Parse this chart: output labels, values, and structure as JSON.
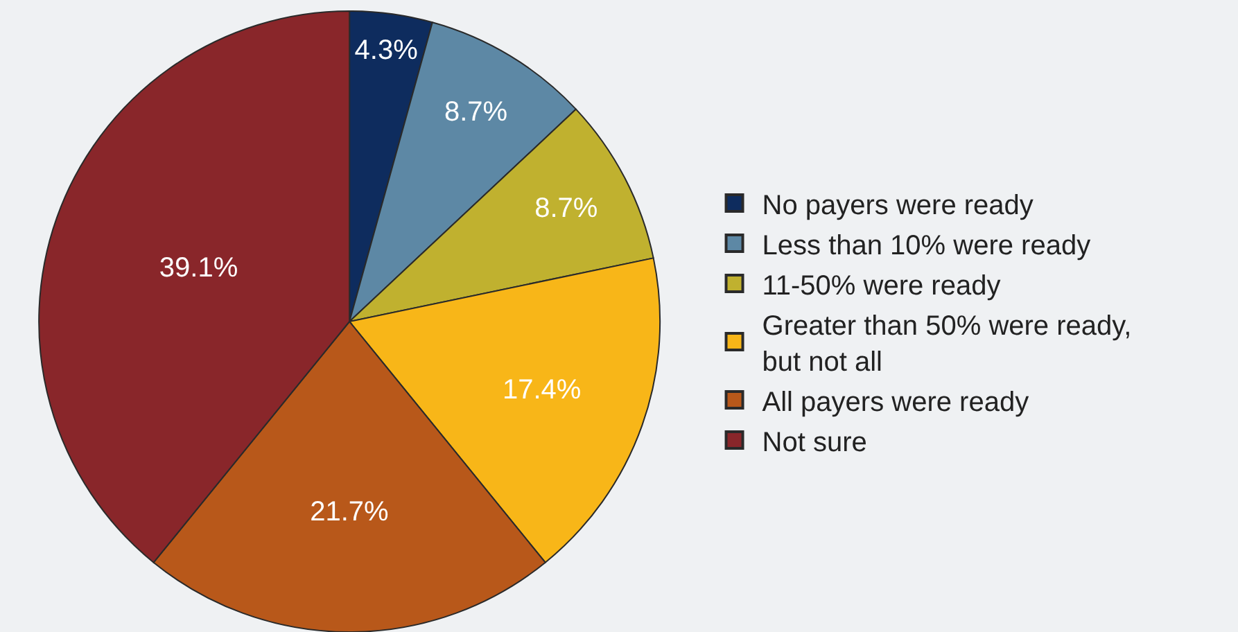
{
  "chart_data": {
    "type": "pie",
    "categories": [
      "No payers were ready",
      "Less than 10% were ready",
      "11-50% were ready",
      "Greater than 50% were ready, but not all",
      "All payers were ready",
      "Not sure"
    ],
    "values": [
      4.3,
      8.7,
      8.7,
      17.4,
      21.7,
      39.1
    ],
    "colors": [
      "#0e2c5e",
      "#5d88a5",
      "#c0b12f",
      "#f8b618",
      "#b8581a",
      "#89262a"
    ],
    "value_labels": [
      "4.3%",
      "8.7%",
      "8.7%",
      "17.4%",
      "21.7%",
      "39.1%"
    ],
    "legend": "right"
  }
}
